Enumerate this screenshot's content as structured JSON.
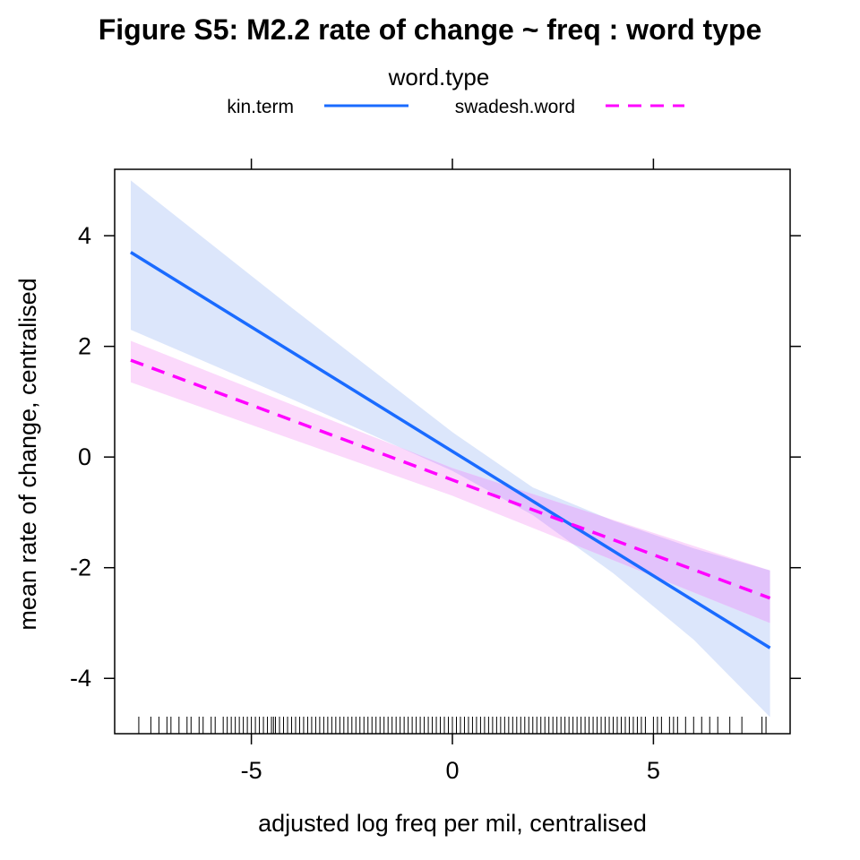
{
  "chart_data": {
    "type": "line",
    "title": "Figure S5: M2.2 rate of change ~ freq : word type",
    "legend": {
      "title": "word.type",
      "placement": "top",
      "entries": [
        "kin.term",
        "swadesh.word"
      ]
    },
    "xlabel": "adjusted log freq per mil, centralised",
    "ylabel": "mean rate of change, centralised",
    "xlim": [
      -8.4,
      8.4
    ],
    "ylim": [
      -5.0,
      5.2
    ],
    "x_ticks": [
      -5,
      0,
      5
    ],
    "x_tick_labels": [
      "-5",
      "0",
      "5"
    ],
    "y_ticks": [
      -4,
      -2,
      0,
      2,
      4
    ],
    "y_tick_labels": [
      "-4",
      "-2",
      "0",
      "2",
      "4"
    ],
    "grid": false,
    "series": [
      {
        "name": "kin.term",
        "color": "#1a6bff",
        "band_color": "#dce6fb",
        "line_style": "solid",
        "x": [
          -8.0,
          7.9
        ],
        "y": [
          3.7,
          -3.45
        ],
        "band_x": [
          -8.0,
          -4.0,
          0.0,
          2.0,
          4.0,
          6.0,
          7.9
        ],
        "band_upper": [
          5.0,
          2.7,
          0.45,
          -0.55,
          -1.15,
          -1.65,
          -2.05
        ],
        "band_lower": [
          2.3,
          1.05,
          -0.25,
          -1.05,
          -2.1,
          -3.3,
          -4.7
        ]
      },
      {
        "name": "swadesh.word",
        "color": "#ff00ff",
        "band_color": "#fbd9fb",
        "line_style": "dashed",
        "x": [
          -8.0,
          7.9
        ],
        "y": [
          1.75,
          -2.55
        ],
        "band_x": [
          -8.0,
          0.0,
          7.9
        ],
        "band_upper": [
          2.1,
          -0.2,
          -2.05
        ],
        "band_lower": [
          1.35,
          -0.7,
          -3.0
        ]
      }
    ],
    "overlap_color": "#e2c2fb",
    "rug_color": "#000000",
    "rug_x": [
      -7.8,
      -7.5,
      -7.3,
      -7.1,
      -7.0,
      -6.8,
      -6.6,
      -6.5,
      -6.3,
      -6.2,
      -6.0,
      -5.9,
      -5.7,
      -5.6,
      -5.5,
      -5.4,
      -5.3,
      -5.2,
      -5.1,
      -5.0,
      -4.9,
      -4.8,
      -4.7,
      -4.6,
      -4.5,
      -4.45,
      -4.4,
      -4.3,
      -4.2,
      -4.1,
      -4.0,
      -3.9,
      -3.8,
      -3.7,
      -3.6,
      -3.5,
      -3.4,
      -3.3,
      -3.2,
      -3.1,
      -3.0,
      -2.9,
      -2.8,
      -2.7,
      -2.6,
      -2.5,
      -2.4,
      -2.3,
      -2.2,
      -2.1,
      -2.0,
      -1.9,
      -1.8,
      -1.7,
      -1.6,
      -1.5,
      -1.4,
      -1.3,
      -1.2,
      -1.1,
      -1.0,
      -0.9,
      -0.8,
      -0.7,
      -0.6,
      -0.5,
      -0.4,
      -0.3,
      -0.2,
      -0.1,
      0.0,
      0.1,
      0.2,
      0.3,
      0.4,
      0.5,
      0.6,
      0.7,
      0.8,
      0.9,
      1.0,
      1.1,
      1.2,
      1.3,
      1.4,
      1.5,
      1.6,
      1.7,
      1.8,
      1.9,
      2.0,
      2.1,
      2.2,
      2.3,
      2.4,
      2.5,
      2.6,
      2.7,
      2.8,
      2.9,
      3.0,
      3.1,
      3.2,
      3.3,
      3.4,
      3.5,
      3.6,
      3.7,
      3.8,
      3.9,
      4.0,
      4.1,
      4.2,
      4.3,
      4.4,
      4.5,
      4.6,
      4.7,
      4.8,
      5.0,
      5.1,
      5.2,
      5.4,
      5.5,
      5.6,
      5.8,
      6.0,
      6.2,
      6.4,
      6.6,
      6.9,
      7.2,
      7.7,
      7.8
    ]
  }
}
